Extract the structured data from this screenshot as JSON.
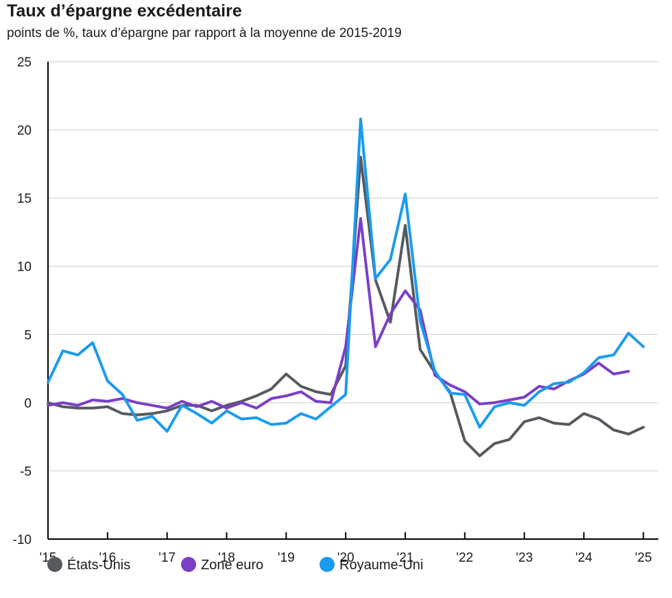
{
  "chart_data": {
    "type": "line",
    "title": "Taux d’épargne excédentaire",
    "subtitle": "points de %, taux d’épargne par rapport à la moyenne de 2015-2019",
    "xlabel": "",
    "ylabel": "",
    "ylim": [
      -10,
      25
    ],
    "yticks": [
      25,
      20,
      15,
      10,
      5,
      0,
      -5,
      -10
    ],
    "xlim": [
      2015.0,
      2025.25
    ],
    "xticks": [
      {
        "value": 2015,
        "label": "'15"
      },
      {
        "value": 2016,
        "label": "'16"
      },
      {
        "value": 2017,
        "label": "'17"
      },
      {
        "value": 2018,
        "label": "'18"
      },
      {
        "value": 2019,
        "label": "'19"
      },
      {
        "value": 2020,
        "label": "'20"
      },
      {
        "value": 2021,
        "label": "'21"
      },
      {
        "value": 2022,
        "label": "'22"
      },
      {
        "value": 2023,
        "label": "'23"
      },
      {
        "value": 2024,
        "label": "'24"
      },
      {
        "value": 2025,
        "label": "'25"
      }
    ],
    "grid": "horizontal",
    "legend_position": "bottom-left",
    "x": [
      2015.0,
      2015.25,
      2015.5,
      2015.75,
      2016.0,
      2016.25,
      2016.5,
      2016.75,
      2017.0,
      2017.25,
      2017.5,
      2017.75,
      2018.0,
      2018.25,
      2018.5,
      2018.75,
      2019.0,
      2019.25,
      2019.5,
      2019.75,
      2020.0,
      2020.25,
      2020.5,
      2020.75,
      2021.0,
      2021.25,
      2021.5,
      2021.75,
      2022.0,
      2022.25,
      2022.5,
      2022.75,
      2023.0,
      2023.25,
      2023.5,
      2023.75,
      2024.0,
      2024.25,
      2024.5,
      2024.75,
      2025.0
    ],
    "series": [
      {
        "name": "États-Unis",
        "color": "#555a5f",
        "values": [
          0,
          -0.3,
          -0.4,
          -0.4,
          -0.3,
          -0.8,
          -0.9,
          -0.8,
          -0.6,
          -0.2,
          -0.2,
          -0.6,
          -0.2,
          0.1,
          0.5,
          1.0,
          2.1,
          1.2,
          0.8,
          0.6,
          2.7,
          18.0,
          9.0,
          5.9,
          13.0,
          3.9,
          2.2,
          0.8,
          -2.8,
          -3.9,
          -3.0,
          -2.7,
          -1.4,
          -1.1,
          -1.5,
          -1.6,
          -0.8,
          -1.2,
          -2.0,
          -2.3,
          -1.8
        ]
      },
      {
        "name": "Zone euro",
        "color": "#7b3fc6",
        "values": [
          -0.2,
          0.0,
          -0.2,
          0.2,
          0.1,
          0.3,
          0.0,
          -0.2,
          -0.4,
          0.1,
          -0.3,
          0.1,
          -0.4,
          0.0,
          -0.4,
          0.3,
          0.5,
          0.8,
          0.1,
          0.0,
          4.1,
          13.5,
          4.1,
          6.5,
          8.2,
          6.8,
          2.0,
          1.3,
          0.8,
          -0.1,
          0.0,
          0.2,
          0.4,
          1.2,
          1.0,
          1.6,
          2.1,
          2.9,
          2.1,
          2.3,
          null
        ]
      },
      {
        "name": "Royaume-Uni",
        "color": "#1a9bf0",
        "values": [
          1.5,
          3.8,
          3.5,
          4.4,
          1.6,
          0.6,
          -1.3,
          -1.0,
          -2.1,
          -0.2,
          -0.8,
          -1.5,
          -0.6,
          -1.2,
          -1.1,
          -1.6,
          -1.5,
          -0.8,
          -1.2,
          -0.3,
          0.6,
          20.8,
          9.1,
          10.5,
          15.3,
          6.0,
          2.3,
          0.7,
          0.6,
          -1.8,
          -0.3,
          0.0,
          -0.2,
          0.8,
          1.4,
          1.5,
          2.2,
          3.3,
          3.5,
          5.1,
          4.1
        ]
      }
    ]
  }
}
